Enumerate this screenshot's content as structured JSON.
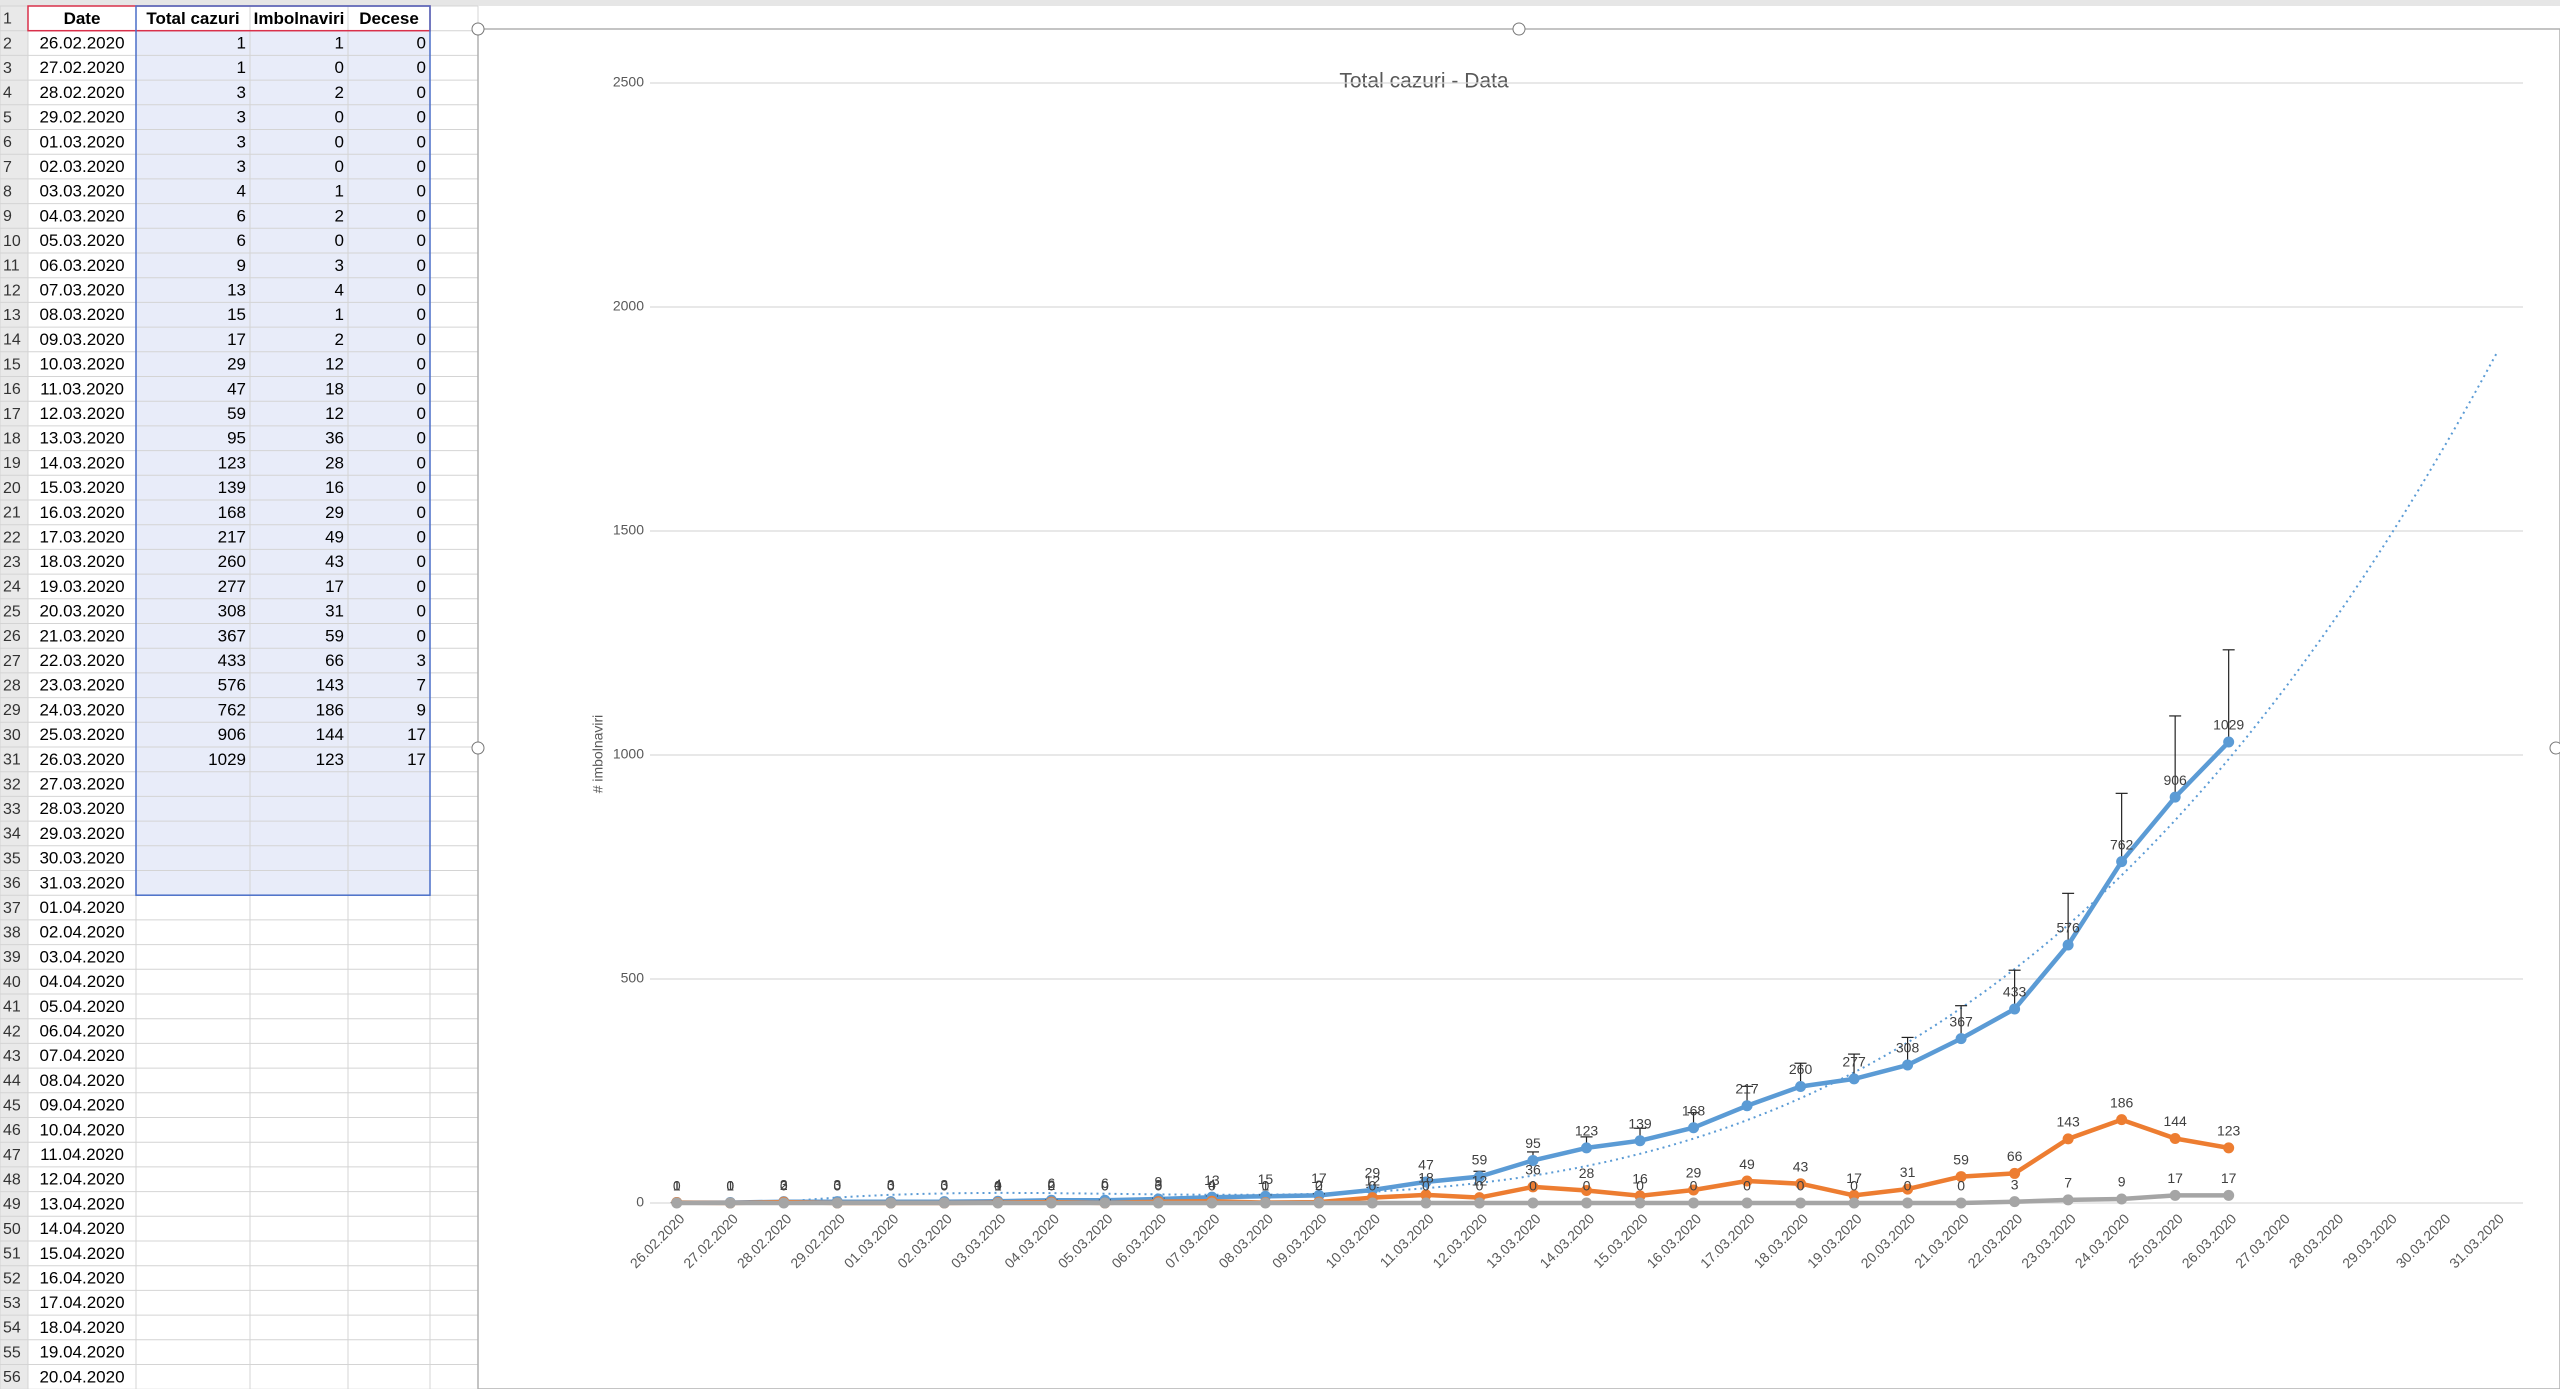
{
  "sheet": {
    "row_numbers": [
      1,
      2,
      3,
      4,
      5,
      6,
      7,
      8,
      9,
      10,
      11,
      12,
      13,
      14,
      15,
      16,
      17,
      18,
      19,
      20,
      21,
      22,
      23,
      24,
      25,
      26,
      27,
      28,
      29,
      30,
      31,
      32,
      33,
      34,
      35,
      36,
      37,
      38,
      39,
      40,
      41,
      42,
      43,
      44,
      45,
      46,
      47,
      48,
      49,
      50,
      51,
      52,
      53,
      54,
      55,
      56
    ],
    "columns": [
      "Date",
      "Total cazuri",
      "Imbolnaviri",
      "Decese"
    ],
    "rows": [
      [
        "26.02.2020",
        1,
        1,
        0
      ],
      [
        "27.02.2020",
        1,
        0,
        0
      ],
      [
        "28.02.2020",
        3,
        2,
        0
      ],
      [
        "29.02.2020",
        3,
        0,
        0
      ],
      [
        "01.03.2020",
        3,
        0,
        0
      ],
      [
        "02.03.2020",
        3,
        0,
        0
      ],
      [
        "03.03.2020",
        4,
        1,
        0
      ],
      [
        "04.03.2020",
        6,
        2,
        0
      ],
      [
        "05.03.2020",
        6,
        0,
        0
      ],
      [
        "06.03.2020",
        9,
        3,
        0
      ],
      [
        "07.03.2020",
        13,
        4,
        0
      ],
      [
        "08.03.2020",
        15,
        1,
        0
      ],
      [
        "09.03.2020",
        17,
        2,
        0
      ],
      [
        "10.03.2020",
        29,
        12,
        0
      ],
      [
        "11.03.2020",
        47,
        18,
        0
      ],
      [
        "12.03.2020",
        59,
        12,
        0
      ],
      [
        "13.03.2020",
        95,
        36,
        0
      ],
      [
        "14.03.2020",
        123,
        28,
        0
      ],
      [
        "15.03.2020",
        139,
        16,
        0
      ],
      [
        "16.03.2020",
        168,
        29,
        0
      ],
      [
        "17.03.2020",
        217,
        49,
        0
      ],
      [
        "18.03.2020",
        260,
        43,
        0
      ],
      [
        "19.03.2020",
        277,
        17,
        0
      ],
      [
        "20.03.2020",
        308,
        31,
        0
      ],
      [
        "21.03.2020",
        367,
        59,
        0
      ],
      [
        "22.03.2020",
        433,
        66,
        3
      ],
      [
        "23.03.2020",
        576,
        143,
        7
      ],
      [
        "24.03.2020",
        762,
        186,
        9
      ],
      [
        "25.03.2020",
        906,
        144,
        17
      ],
      [
        "26.03.2020",
        1029,
        123,
        17
      ],
      [
        "27.03.2020"
      ],
      [
        "28.03.2020"
      ],
      [
        "29.03.2020"
      ],
      [
        "30.03.2020"
      ],
      [
        "31.03.2020"
      ],
      [
        "01.04.2020"
      ],
      [
        "02.04.2020"
      ],
      [
        "03.04.2020"
      ],
      [
        "04.04.2020"
      ],
      [
        "05.04.2020"
      ],
      [
        "06.04.2020"
      ],
      [
        "07.04.2020"
      ],
      [
        "08.04.2020"
      ],
      [
        "09.04.2020"
      ],
      [
        "10.04.2020"
      ],
      [
        "11.04.2020"
      ],
      [
        "12.04.2020"
      ],
      [
        "13.04.2020"
      ],
      [
        "14.04.2020"
      ],
      [
        "15.04.2020"
      ],
      [
        "16.04.2020"
      ],
      [
        "17.04.2020"
      ],
      [
        "18.04.2020"
      ],
      [
        "19.04.2020"
      ],
      [
        "20.04.2020"
      ]
    ]
  },
  "chart_data": {
    "type": "line",
    "title": "Total cazuri - Data",
    "y_label": "# imbolnaviri",
    "categories": [
      "26.02.2020",
      "27.02.2020",
      "28.02.2020",
      "29.02.2020",
      "01.03.2020",
      "02.03.2020",
      "03.03.2020",
      "04.03.2020",
      "05.03.2020",
      "06.03.2020",
      "07.03.2020",
      "08.03.2020",
      "09.03.2020",
      "10.03.2020",
      "11.03.2020",
      "12.03.2020",
      "13.03.2020",
      "14.03.2020",
      "15.03.2020",
      "16.03.2020",
      "17.03.2020",
      "18.03.2020",
      "19.03.2020",
      "20.03.2020",
      "21.03.2020",
      "22.03.2020",
      "23.03.2020",
      "24.03.2020",
      "25.03.2020",
      "26.03.2020",
      "27.03.2020",
      "28.03.2020",
      "29.03.2020",
      "30.03.2020",
      "31.03.2020"
    ],
    "series": [
      {
        "name": "Total cazuri",
        "color": "#5b9bd5",
        "error_bar_percent": 20,
        "trendline_order": 3,
        "values": [
          1,
          1,
          3,
          3,
          3,
          3,
          4,
          6,
          6,
          9,
          13,
          15,
          17,
          29,
          47,
          59,
          95,
          123,
          139,
          168,
          217,
          260,
          277,
          308,
          367,
          433,
          576,
          762,
          906,
          1029,
          null,
          null,
          null,
          null,
          null
        ]
      },
      {
        "name": "Imbolnaviri",
        "color": "#ed7d31",
        "values": [
          1,
          0,
          2,
          0,
          0,
          0,
          1,
          2,
          0,
          3,
          4,
          1,
          2,
          12,
          18,
          12,
          36,
          28,
          16,
          29,
          49,
          43,
          17,
          31,
          59,
          66,
          143,
          186,
          144,
          123,
          null,
          null,
          null,
          null,
          null
        ]
      },
      {
        "name": "Decese",
        "color": "#a5a5a5",
        "values": [
          0,
          0,
          0,
          0,
          0,
          0,
          0,
          0,
          0,
          0,
          0,
          0,
          0,
          0,
          0,
          0,
          0,
          0,
          0,
          0,
          0,
          0,
          0,
          0,
          0,
          3,
          7,
          9,
          17,
          17,
          null,
          null,
          null,
          null,
          null
        ]
      }
    ],
    "ylim": [
      0,
      2500
    ],
    "yticks": [
      0,
      500,
      1000,
      1500,
      2000,
      2500
    ],
    "grid": true
  }
}
